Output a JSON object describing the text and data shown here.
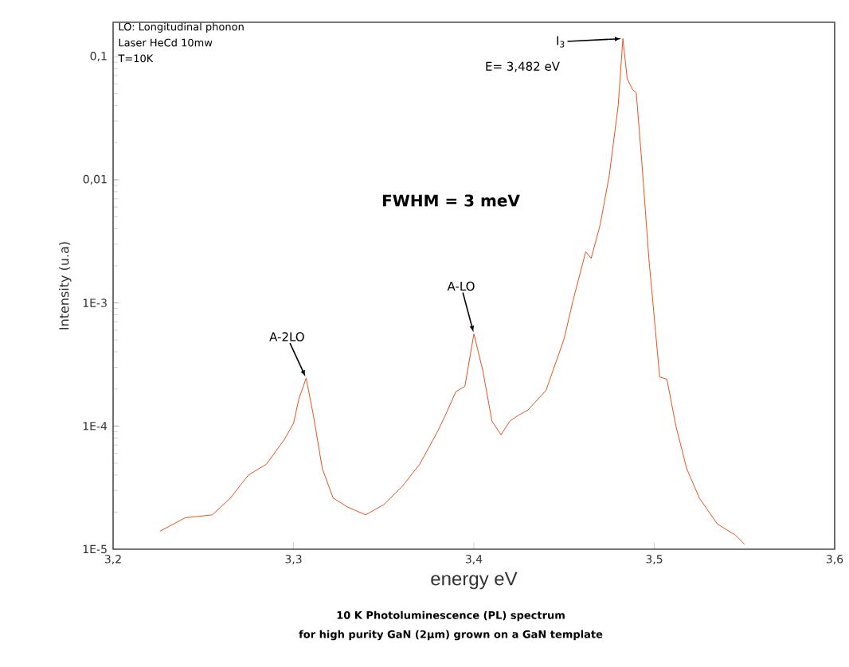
{
  "chart_data": {
    "type": "line",
    "title": "10 K Photoluminescence (PL) spectrum",
    "subtitle": "for high purity GaN (2µm) grown on a GaN template",
    "xlabel": "energy eV",
    "ylabel": "Intensity (u.a)",
    "log": "y",
    "color": "#e8501e",
    "xlim": [
      3.2,
      3.6
    ],
    "ylim": [
      1e-05,
      0.19
    ],
    "xticks": [
      {
        "value": 3.2,
        "label": "3,2"
      },
      {
        "value": 3.3,
        "label": "3,3"
      },
      {
        "value": 3.4,
        "label": "3,4"
      },
      {
        "value": 3.5,
        "label": "3,5"
      },
      {
        "value": 3.6,
        "label": "3,6"
      }
    ],
    "yticks": [
      {
        "value": 1e-05,
        "label": "1E-5"
      },
      {
        "value": 0.0001,
        "label": "1E-4"
      },
      {
        "value": 0.001,
        "label": "1E-3"
      },
      {
        "value": 0.01,
        "label": "0,01"
      },
      {
        "value": 0.1,
        "label": "0,1"
      }
    ],
    "x": [
      3.226,
      3.24,
      3.255,
      3.265,
      3.275,
      3.285,
      3.295,
      3.3,
      3.303,
      3.307,
      3.311,
      3.316,
      3.322,
      3.33,
      3.34,
      3.35,
      3.36,
      3.37,
      3.38,
      3.385,
      3.39,
      3.395,
      3.4,
      3.405,
      3.41,
      3.415,
      3.42,
      3.425,
      3.43,
      3.44,
      3.45,
      3.455,
      3.462,
      3.465,
      3.47,
      3.475,
      3.48,
      3.4826,
      3.485,
      3.488,
      3.49,
      3.493,
      3.497,
      3.5,
      3.503,
      3.507,
      3.512,
      3.518,
      3.525,
      3.535,
      3.545,
      3.55
    ],
    "values": [
      1.4e-05,
      1.8e-05,
      1.9e-05,
      2.6e-05,
      4e-05,
      4.9e-05,
      7.8e-05,
      0.000105,
      0.000166,
      0.000245,
      0.000123,
      4.5e-05,
      2.6e-05,
      2.2e-05,
      1.9e-05,
      2.3e-05,
      3.2e-05,
      4.9e-05,
      9.1e-05,
      0.00013,
      0.00019,
      0.00021,
      0.00056,
      0.00028,
      0.00011,
      8.5e-05,
      0.00011,
      0.000123,
      0.000135,
      0.000195,
      0.00051,
      0.00105,
      0.0026,
      0.0023,
      0.0043,
      0.0107,
      0.04,
      0.14,
      0.066,
      0.054,
      0.051,
      0.0145,
      0.0023,
      0.00076,
      0.00025,
      0.00024,
      0.0001,
      4.5e-05,
      2.6e-05,
      1.6e-05,
      1.3e-05,
      1.1e-05
    ],
    "annotations": [
      "LO: Longitudinal phonon",
      "Laser HeCd 10mw",
      "T=10K",
      "FWHM = 3 meV",
      "E= 3,482 eV",
      {
        "text": "A-2LO",
        "x": 3.307,
        "y": 0.000245
      },
      {
        "text": "A-LO",
        "x": 3.4,
        "y": 0.00056
      },
      {
        "text": "I$_{3}$",
        "x": 3.4826,
        "y": 0.14
      }
    ]
  }
}
